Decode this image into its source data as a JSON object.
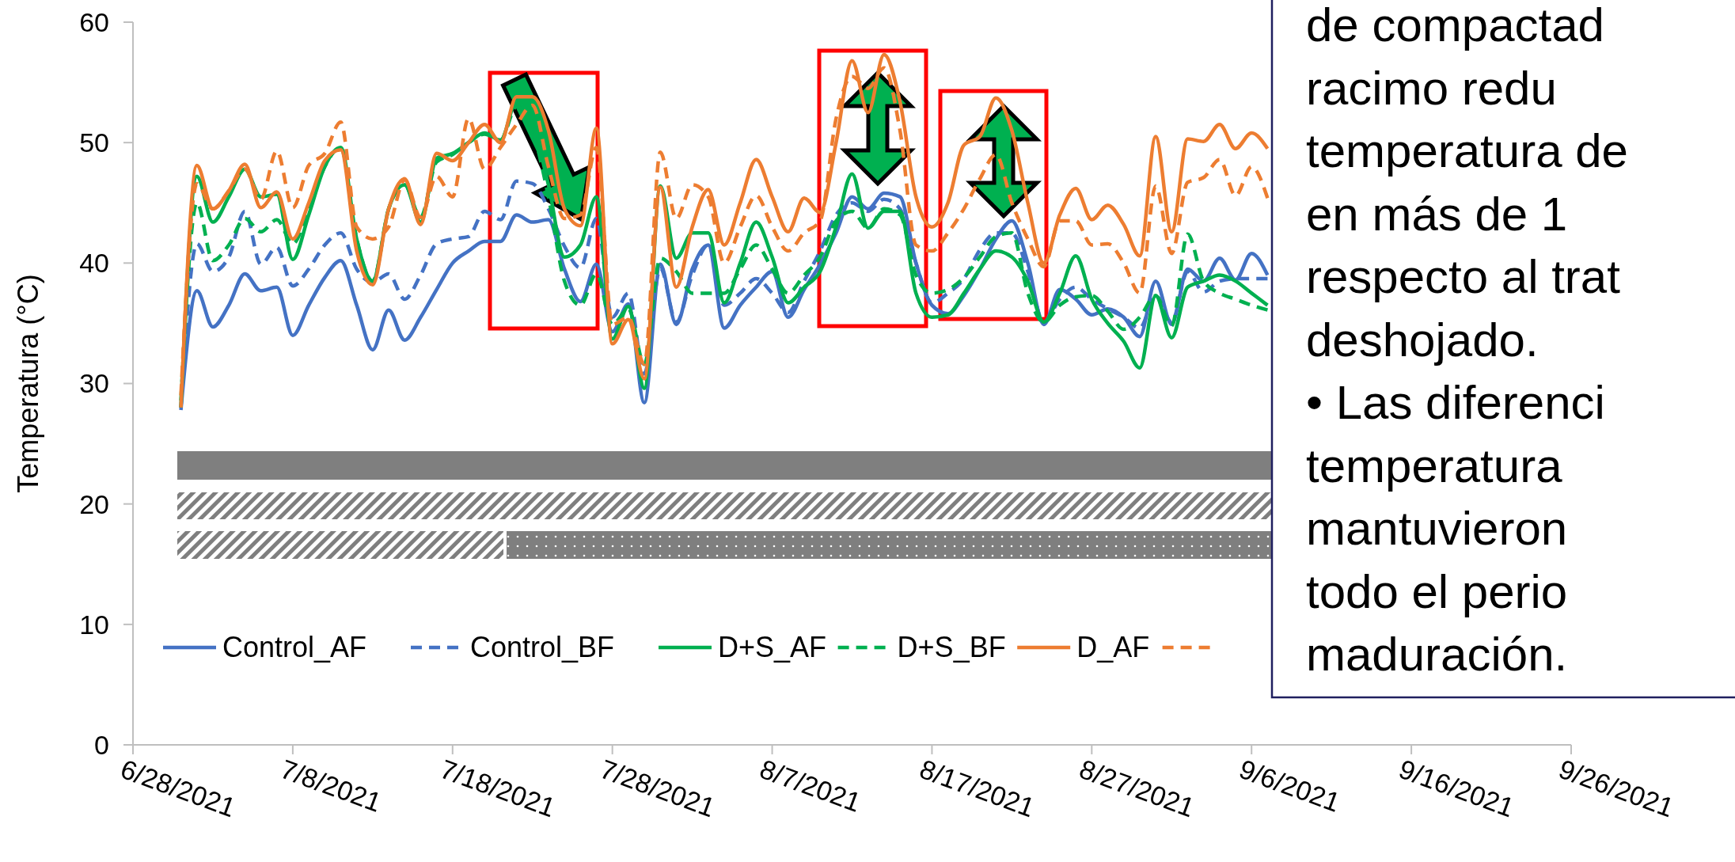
{
  "chart_data": {
    "type": "line",
    "ylabel": "Temperatura (°C)",
    "x": [
      "2021-07-01",
      "2021-07-02",
      "2021-07-03",
      "2021-07-04",
      "2021-07-05",
      "2021-07-06",
      "2021-07-07",
      "2021-07-08",
      "2021-07-09",
      "2021-07-10",
      "2021-07-11",
      "2021-07-12",
      "2021-07-13",
      "2021-07-14",
      "2021-07-15",
      "2021-07-16",
      "2021-07-17",
      "2021-07-18",
      "2021-07-19",
      "2021-07-20",
      "2021-07-21",
      "2021-07-22",
      "2021-07-23",
      "2021-07-24",
      "2021-07-25",
      "2021-07-26",
      "2021-07-27",
      "2021-07-28",
      "2021-07-29",
      "2021-07-30",
      "2021-07-31",
      "2021-08-01",
      "2021-08-02",
      "2021-08-03",
      "2021-08-04",
      "2021-08-05",
      "2021-08-06",
      "2021-08-07",
      "2021-08-08",
      "2021-08-09",
      "2021-08-10",
      "2021-08-11",
      "2021-08-12",
      "2021-08-13",
      "2021-08-14",
      "2021-08-15",
      "2021-08-16",
      "2021-08-17",
      "2021-08-18",
      "2021-08-19",
      "2021-08-20",
      "2021-08-21",
      "2021-08-22",
      "2021-08-23",
      "2021-08-24",
      "2021-08-25",
      "2021-08-26",
      "2021-08-27",
      "2021-08-28",
      "2021-08-29",
      "2021-08-30",
      "2021-08-31",
      "2021-09-01",
      "2021-09-02",
      "2021-09-03",
      "2021-09-04",
      "2021-09-05",
      "2021-09-06",
      "2021-09-07"
    ],
    "series": [
      {
        "name": "Control_AF",
        "color": "#4472c4",
        "line_style": "solid",
        "values": [
          27.8,
          37.7,
          34.7,
          36.5,
          39.1,
          37.7,
          38.0,
          34.0,
          36.5,
          38.8,
          40.2,
          36.5,
          32.8,
          36.1,
          33.6,
          35.5,
          37.8,
          40.0,
          41.0,
          41.8,
          41.8,
          44.0,
          43.4,
          43.6,
          39.5,
          36.8,
          39.9,
          34.3,
          36.6,
          28.4,
          39.9,
          34.9,
          39.5,
          41.5,
          34.6,
          36.5,
          38.0,
          39.3,
          35.5,
          37.8,
          39.9,
          42.5,
          45.5,
          44.5,
          45.8,
          45.5,
          40.0,
          36.5,
          35.8,
          37.3,
          39.5,
          42.0,
          43.5,
          40.0,
          34.9,
          37.8,
          37.0,
          35.7,
          36.2,
          35.5,
          33.9,
          38.5,
          34.9,
          39.5,
          38.5,
          40.4,
          38.6,
          40.8,
          39.0
        ]
      },
      {
        "name": "Control_BF",
        "color": "#4472c4",
        "line_style": "dashed",
        "values": [
          28.0,
          41.6,
          39.3,
          40.5,
          44.3,
          39.9,
          41.3,
          38.1,
          39.5,
          41.5,
          42.5,
          39.5,
          38.4,
          39.1,
          37.0,
          39.0,
          41.6,
          42.0,
          42.2,
          44.3,
          43.6,
          46.8,
          46.6,
          44.5,
          41.4,
          39.6,
          43.7,
          35.5,
          37.5,
          30.8,
          39.6,
          35.1,
          39.0,
          41.5,
          36.5,
          37.5,
          38.7,
          37.5,
          35.9,
          38.5,
          41.0,
          44.0,
          45.0,
          44.3,
          45.3,
          44.5,
          40.0,
          36.7,
          37.5,
          38.7,
          41.1,
          42.5,
          42.5,
          39.3,
          35.1,
          37.0,
          38.0,
          37.0,
          36.2,
          35.5,
          34.6,
          37.3,
          35.1,
          39.3,
          37.6,
          38.5,
          38.7,
          38.7,
          38.7
        ]
      },
      {
        "name": "D+S_AF",
        "color": "#00b050",
        "line_style": "solid",
        "values": [
          28.0,
          47.2,
          43.4,
          45.5,
          47.8,
          45.5,
          45.7,
          40.3,
          44.0,
          48.0,
          49.6,
          42.0,
          38.5,
          44.5,
          46.5,
          43.4,
          48.7,
          49.1,
          50.0,
          50.8,
          50.2,
          53.4,
          51.5,
          46.5,
          40.5,
          41.5,
          45.5,
          33.7,
          36.4,
          29.6,
          46.4,
          40.4,
          42.5,
          42.5,
          36.7,
          40.0,
          43.4,
          40.5,
          36.7,
          38.0,
          39.3,
          43.0,
          47.4,
          42.9,
          44.3,
          44.3,
          37.5,
          35.5,
          35.7,
          37.5,
          39.5,
          41.0,
          40.5,
          38.5,
          35.1,
          37.5,
          40.6,
          37.0,
          35.0,
          33.5,
          31.3,
          37.3,
          33.8,
          38.0,
          38.5,
          39.0,
          38.5,
          37.5,
          36.5
        ]
      },
      {
        "name": "D+S_BF",
        "color": "#00b050",
        "line_style": "dashed",
        "values": [
          28.6,
          45.0,
          40.2,
          41.5,
          43.7,
          42.6,
          43.6,
          41.6,
          44.5,
          48.0,
          49.6,
          42.0,
          38.5,
          44.5,
          46.5,
          43.8,
          48.4,
          49.0,
          50.0,
          50.7,
          50.2,
          53.0,
          51.0,
          45.5,
          38.5,
          36.5,
          39.1,
          34.9,
          36.2,
          31.6,
          40.4,
          39.3,
          37.5,
          37.5,
          37.5,
          39.5,
          41.5,
          39.5,
          37.5,
          39.0,
          40.5,
          43.5,
          44.3,
          42.9,
          44.5,
          44.0,
          39.0,
          37.5,
          37.8,
          38.8,
          40.5,
          42.2,
          42.5,
          37.5,
          35.1,
          36.5,
          37.2,
          37.3,
          36.0,
          34.5,
          35.5,
          37.3,
          34.8,
          42.4,
          38.5,
          37.5,
          37.0,
          36.5,
          36.1
        ]
      },
      {
        "name": "D_AF",
        "color": "#ed7d31",
        "line_style": "solid",
        "values": [
          28.0,
          48.1,
          44.5,
          46.0,
          48.2,
          44.6,
          45.9,
          42.0,
          45.0,
          48.5,
          49.4,
          41.0,
          38.2,
          44.5,
          47.0,
          43.2,
          49.1,
          48.5,
          50.0,
          51.5,
          50.0,
          53.8,
          53.8,
          51.0,
          44.5,
          43.1,
          51.2,
          33.3,
          35.3,
          30.4,
          46.3,
          38.0,
          43.0,
          46.1,
          41.5,
          45.0,
          48.6,
          45.5,
          42.6,
          45.4,
          44.2,
          50.0,
          56.8,
          52.5,
          57.3,
          53.4,
          45.5,
          43.0,
          45.0,
          49.8,
          50.5,
          53.7,
          51.0,
          45.0,
          40.0,
          44.0,
          46.2,
          43.6,
          44.8,
          43.2,
          40.6,
          50.5,
          42.6,
          50.3,
          50.1,
          51.5,
          49.5,
          50.8,
          49.5
        ]
      },
      {
        "color": "#ed7d31",
        "line_style": "dashed",
        "values": [
          29.0,
          46.6,
          44.5,
          46.0,
          47.8,
          45.3,
          49.3,
          44.6,
          48.1,
          49.1,
          51.7,
          43.0,
          42.0,
          43.0,
          46.9,
          43.8,
          47.2,
          45.5,
          52.0,
          47.8,
          49.6,
          51.5,
          53.1,
          48.0,
          43.7,
          44.0,
          49.6,
          34.9,
          35.5,
          31.6,
          49.2,
          43.7,
          46.5,
          45.5,
          40.0,
          43.0,
          45.6,
          43.0,
          41.0,
          42.5,
          43.5,
          52.0,
          55.5,
          54.5,
          56.2,
          51.0,
          41.5,
          41.0,
          42.5,
          44.5,
          47.0,
          49.0,
          45.0,
          42.0,
          39.7,
          43.5,
          43.5,
          41.5,
          41.6,
          40.0,
          37.5,
          46.4,
          40.8,
          46.7,
          47.1,
          48.6,
          45.6,
          48.0,
          45.4
        ]
      }
    ],
    "xlim": [
      "2021-06-28",
      "2021-09-26"
    ],
    "xticks": [
      {
        "value": "2021-06-28",
        "label": "6/28/2021"
      },
      {
        "value": "2021-07-08",
        "label": "7/8/2021"
      },
      {
        "value": "2021-07-18",
        "label": "7/18/2021"
      },
      {
        "value": "2021-07-28",
        "label": "7/28/2021"
      },
      {
        "value": "2021-08-07",
        "label": "8/7/2021"
      },
      {
        "value": "2021-08-17",
        "label": "8/17/2021"
      },
      {
        "value": "2021-08-27",
        "label": "8/27/2021"
      },
      {
        "value": "2021-09-06",
        "label": "9/6/2021"
      },
      {
        "value": "2021-09-16",
        "label": "9/16/2021"
      },
      {
        "value": "2021-09-26",
        "label": "9/26/2021"
      }
    ],
    "ylim": [
      0,
      60
    ],
    "yticks": [
      0,
      10,
      20,
      30,
      40,
      50,
      60
    ],
    "legend": "bottom",
    "annotations": [
      "de compactad",
      "racimo redu",
      "temperatura de",
      "en más de 1",
      "respecto al trat",
      "deshojado.",
      "• Las diferenci",
      "temperatura",
      "mantuvieron",
      "todo el perio",
      "maduración."
    ]
  }
}
